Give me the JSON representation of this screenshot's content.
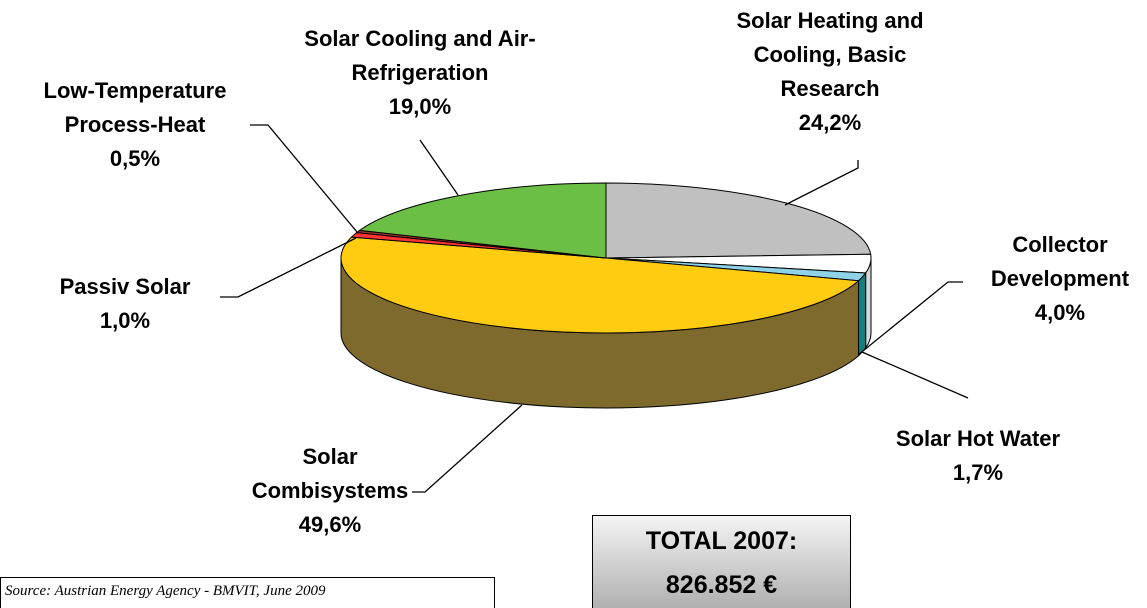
{
  "chart_data": {
    "type": "pie",
    "categories": [
      "Solar Heating and Cooling, Basic Research",
      "Collector Development",
      "Solar Hot Water",
      "Solar Combisystems",
      "Passiv Solar",
      "Low-Temperature Process-Heat",
      "Solar Cooling and Air-Refrigeration"
    ],
    "values": [
      24.2,
      4.0,
      1.7,
      49.6,
      1.0,
      0.5,
      19.0
    ],
    "value_labels": [
      "24,2%",
      "4,0%",
      "1,7%",
      "49,6%",
      "1,0%",
      "0,5%",
      "19,0%"
    ],
    "colors": [
      "#c0c0c0",
      "#ffffff",
      "#8fd3e8",
      "#ffcc11",
      "#ff3333",
      "#993333",
      "#6cbf45"
    ],
    "side_colors": [
      "#808080",
      "#d8d8d8",
      "#138080",
      "#7f6a2e",
      "#801010",
      "#601010",
      "#33661f"
    ],
    "annotations": [
      "TOTAL 2007:",
      "826.852 €"
    ],
    "source": "Source: Austrian Energy Agency - BMVIT, June 2009"
  }
}
